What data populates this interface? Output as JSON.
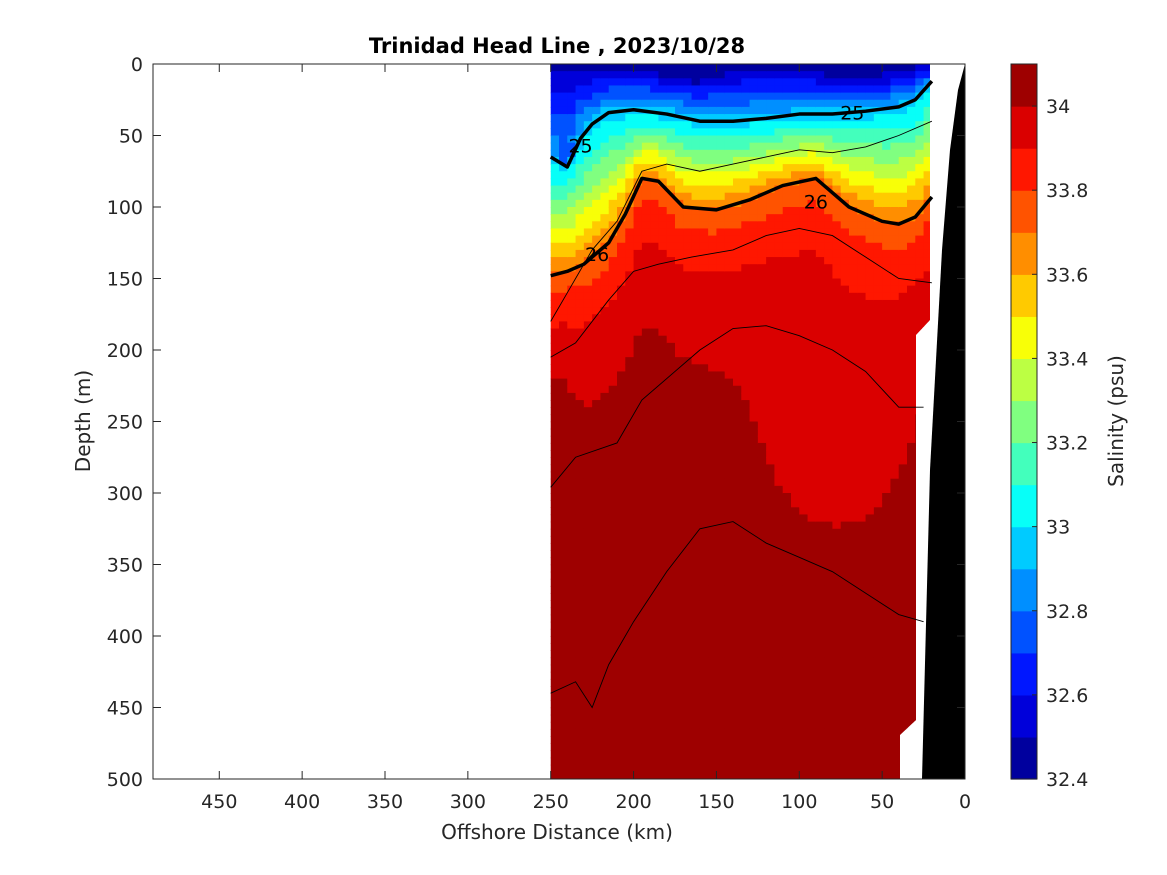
{
  "chart_data": {
    "type": "heatmap",
    "title": "Trinidad Head Line , 2023/10/28",
    "xlabel": "Offshore Distance (km)",
    "ylabel": "Depth (m)",
    "xlim": [
      490,
      0
    ],
    "ylim": [
      0,
      500
    ],
    "x_ticks": [
      450,
      400,
      350,
      300,
      250,
      200,
      150,
      100,
      50,
      0
    ],
    "y_ticks": [
      0,
      50,
      100,
      150,
      200,
      250,
      300,
      350,
      400,
      450,
      500
    ],
    "colorbar": {
      "label": "Salinity (psu)",
      "range": [
        32.4,
        34.1
      ],
      "ticks": [
        32.4,
        32.6,
        32.8,
        33,
        33.2,
        33.4,
        33.6,
        33.8,
        34
      ],
      "levels": 17
    },
    "data_extent_km": [
      250,
      20
    ],
    "density_contours": [
      {
        "label": "25",
        "distance_km": [
          250,
          240,
          232,
          225,
          215,
          200,
          180,
          160,
          140,
          120,
          100,
          80,
          60,
          40,
          30,
          20
        ],
        "depth_m": [
          65,
          72,
          52,
          42,
          34,
          32,
          35,
          40,
          40,
          38,
          35,
          35,
          33,
          30,
          25,
          12
        ]
      },
      {
        "label": "26",
        "distance_km": [
          250,
          240,
          230,
          215,
          205,
          195,
          185,
          170,
          150,
          130,
          110,
          90,
          70,
          50,
          40,
          30,
          20
        ],
        "depth_m": [
          148,
          145,
          140,
          125,
          105,
          80,
          82,
          100,
          102,
          95,
          85,
          80,
          100,
          110,
          112,
          107,
          93
        ]
      }
    ],
    "contour_labels": [
      {
        "text": "25",
        "distance_km": 68,
        "depth_m": 34
      },
      {
        "text": "25",
        "distance_km": 232,
        "depth_m": 57
      },
      {
        "text": "26",
        "distance_km": 90,
        "depth_m": 96
      },
      {
        "text": "26",
        "distance_km": 222,
        "depth_m": 133
      }
    ]
  }
}
